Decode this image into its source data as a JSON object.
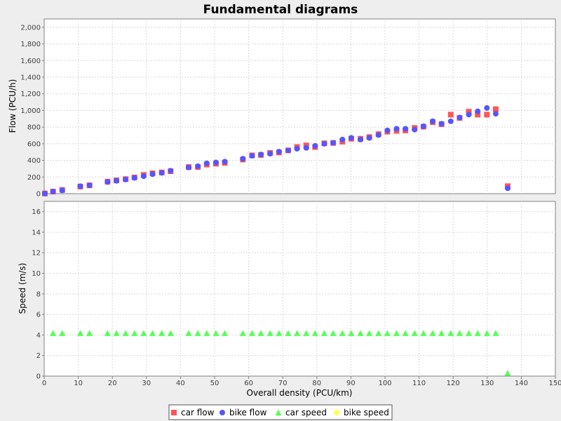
{
  "chart_data": {
    "type": "scatter",
    "title": "Fundamental diagrams",
    "xlabel": "Overall density (PCU/km)",
    "xlim": [
      0,
      150
    ],
    "xticks": [
      0,
      10,
      20,
      30,
      40,
      50,
      60,
      70,
      80,
      90,
      100,
      110,
      120,
      130,
      140,
      150
    ],
    "grid": true,
    "legend_position": "bottom",
    "panels": [
      {
        "ylabel": "Flow (PCU/h)",
        "ylim": [
          0,
          2100
        ],
        "yticks": [
          0,
          200,
          400,
          600,
          800,
          1000,
          1200,
          1400,
          1600,
          1800,
          2000
        ],
        "ytick_labels": [
          "0",
          "200",
          "400",
          "600",
          "800",
          "1,000",
          "1,200",
          "1,400",
          "1,600",
          "1,800",
          "2,000"
        ],
        "series": [
          {
            "name": "car flow",
            "color": "#ff5555",
            "marker": "square",
            "x": [
              0.2,
              2.6,
              5.3,
              10.6,
              13.3,
              18.6,
              21.2,
              23.9,
              26.5,
              29.2,
              31.8,
              34.5,
              37.1,
              42.4,
              45.1,
              47.7,
              50.4,
              53.0,
              58.3,
              61.0,
              63.6,
              66.3,
              68.9,
              71.6,
              74.2,
              76.9,
              79.5,
              82.2,
              84.8,
              87.5,
              90.1,
              92.8,
              95.4,
              98.1,
              100.7,
              103.4,
              106.0,
              108.7,
              111.3,
              114.0,
              116.6,
              119.3,
              121.9,
              124.6,
              127.2,
              129.9,
              132.5,
              136.0
            ],
            "values": [
              2,
              25,
              45,
              85,
              100,
              145,
              160,
              175,
              195,
              225,
              245,
              255,
              270,
              320,
              320,
              350,
              360,
              370,
              410,
              460,
              465,
              490,
              495,
              520,
              560,
              580,
              560,
              605,
              610,
              625,
              660,
              660,
              680,
              715,
              745,
              755,
              760,
              790,
              805,
              860,
              835,
              950,
              910,
              985,
              950,
              950,
              1015,
              90
            ]
          },
          {
            "name": "bike flow",
            "color": "#5555ff",
            "marker": "circle",
            "x": [
              0.2,
              2.6,
              5.3,
              10.6,
              13.3,
              18.6,
              21.2,
              23.9,
              26.5,
              29.2,
              31.8,
              34.5,
              37.1,
              42.4,
              45.1,
              47.7,
              50.4,
              53.0,
              58.3,
              61.0,
              63.6,
              66.3,
              68.9,
              71.6,
              74.2,
              76.9,
              79.5,
              82.2,
              84.8,
              87.5,
              90.1,
              92.8,
              95.4,
              98.1,
              100.7,
              103.4,
              106.0,
              108.7,
              111.3,
              114.0,
              116.6,
              119.3,
              121.9,
              124.6,
              127.2,
              129.9,
              132.5,
              136.0
            ],
            "values": [
              2,
              25,
              40,
              90,
              100,
              140,
              155,
              170,
              190,
              210,
              235,
              250,
              275,
              315,
              330,
              365,
              375,
              385,
              420,
              455,
              470,
              480,
              505,
              520,
              540,
              550,
              575,
              600,
              610,
              650,
              670,
              650,
              670,
              705,
              760,
              780,
              780,
              770,
              810,
              870,
              840,
              870,
              915,
              950,
              990,
              1030,
              960,
              65
            ]
          }
        ]
      },
      {
        "ylabel": "Speed (m/s)",
        "ylim": [
          0,
          17
        ],
        "yticks": [
          0,
          2,
          4,
          6,
          8,
          10,
          12,
          14,
          16
        ],
        "ytick_labels": [
          "0",
          "2",
          "4",
          "6",
          "8",
          "10",
          "12",
          "14",
          "16"
        ],
        "series": [
          {
            "name": "car speed",
            "color": "#55ff55",
            "marker": "triangle",
            "x": [
              2.6,
              5.3,
              10.6,
              13.3,
              18.6,
              21.2,
              23.9,
              26.5,
              29.2,
              31.8,
              34.5,
              37.1,
              42.4,
              45.1,
              47.7,
              50.4,
              53.0,
              58.3,
              61.0,
              63.6,
              66.3,
              68.9,
              71.6,
              74.2,
              76.9,
              79.5,
              82.2,
              84.8,
              87.5,
              90.1,
              92.8,
              95.4,
              98.1,
              100.7,
              103.4,
              106.0,
              108.7,
              111.3,
              114.0,
              116.6,
              119.3,
              121.9,
              124.6,
              127.2,
              129.9,
              132.5,
              136.0
            ],
            "values": [
              4.17,
              4.17,
              4.17,
              4.17,
              4.17,
              4.17,
              4.17,
              4.17,
              4.17,
              4.17,
              4.17,
              4.17,
              4.17,
              4.17,
              4.17,
              4.17,
              4.17,
              4.17,
              4.17,
              4.17,
              4.17,
              4.17,
              4.17,
              4.17,
              4.17,
              4.17,
              4.17,
              4.17,
              4.17,
              4.17,
              4.17,
              4.17,
              4.17,
              4.17,
              4.17,
              4.17,
              4.17,
              4.17,
              4.17,
              4.17,
              4.17,
              4.17,
              4.17,
              4.17,
              4.17,
              4.17,
              0.3
            ]
          },
          {
            "name": "bike speed",
            "color": "#ffff55",
            "marker": "diamond",
            "x": [],
            "values": []
          }
        ]
      }
    ],
    "xtick_labels": [
      "0",
      "10",
      "20",
      "30",
      "40",
      "50",
      "60",
      "70",
      "80",
      "90",
      "100",
      "110",
      "120",
      "130",
      "140",
      "150"
    ],
    "legend": [
      {
        "name": "car flow",
        "color": "#ff5555",
        "marker": "square"
      },
      {
        "name": "bike flow",
        "color": "#5555ff",
        "marker": "circle"
      },
      {
        "name": "car speed",
        "color": "#55ff55",
        "marker": "triangle"
      },
      {
        "name": "bike speed",
        "color": "#ffff55",
        "marker": "diamond"
      }
    ]
  }
}
